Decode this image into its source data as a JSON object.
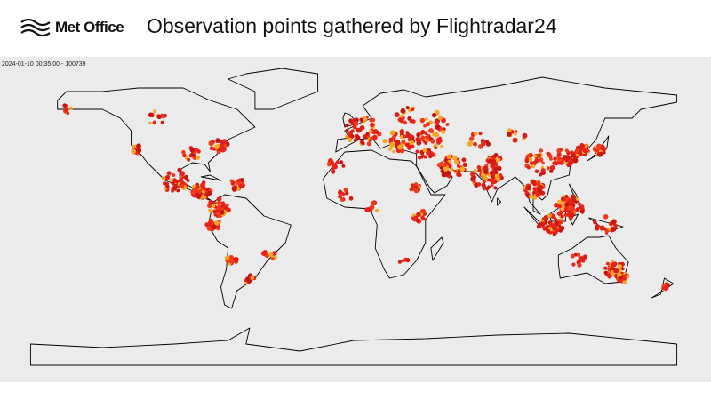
{
  "header": {
    "logo": "Met Office",
    "title": "Observation points gathered by Flightradar24"
  },
  "map": {
    "stamp": "2024-01-10 00:35:00  -  100739"
  }
}
